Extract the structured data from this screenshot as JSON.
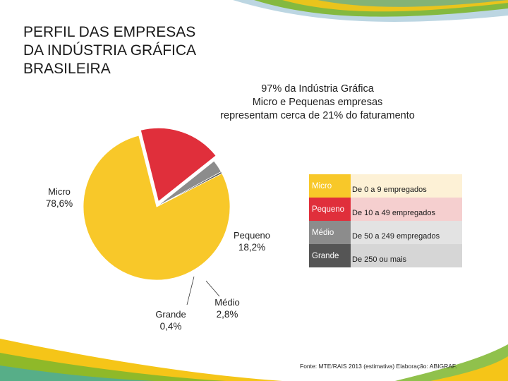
{
  "title": {
    "lines": [
      "PERFIL DAS EMPRESAS",
      "DA INDÚSTRIA GRÁFICA",
      "BRASILEIRA"
    ]
  },
  "subtitle": {
    "lines": [
      "97% da Indústria Gráfica",
      "Micro e Pequenas empresas",
      "representam cerca  de 21% do faturamento"
    ]
  },
  "chart_data": {
    "type": "pie",
    "title": "",
    "slices": [
      {
        "name": "Micro",
        "value": 78.6,
        "label": "78,6%",
        "color": "#f8c829"
      },
      {
        "name": "Pequeno",
        "value": 18.2,
        "label": "18,2%",
        "color": "#e02f3b"
      },
      {
        "name": "Médio",
        "value": 2.8,
        "label": "2,8%",
        "color": "#8c8c8c"
      },
      {
        "name": "Grande",
        "value": 0.4,
        "label": "0,4%",
        "color": "#555555"
      }
    ],
    "legend": [
      {
        "name": "Micro",
        "description": "De 0 a 9 empregados",
        "swatch": "#f8c829",
        "row_bg": "#fdf1d6"
      },
      {
        "name": "Pequeno",
        "description": "De 10 a 49 empregados",
        "swatch": "#e02f3b",
        "row_bg": "#f5cfcf"
      },
      {
        "name": "Médio",
        "description": "De 50 a 249 empregados",
        "swatch": "#8c8c8c",
        "row_bg": "#e3e3e3"
      },
      {
        "name": "Grande",
        "description": "De 250 ou mais",
        "swatch": "#555555",
        "row_bg": "#d6d6d6"
      }
    ],
    "legend_position": "right"
  },
  "source": "Fonte: MTE/RAIS 2013 (estimativa)  Elaboração: ABIGRAF.",
  "colors": {
    "deco_yellow": "#f5c518",
    "deco_green": "#7db62d",
    "deco_teal": "#3fa9b0"
  }
}
